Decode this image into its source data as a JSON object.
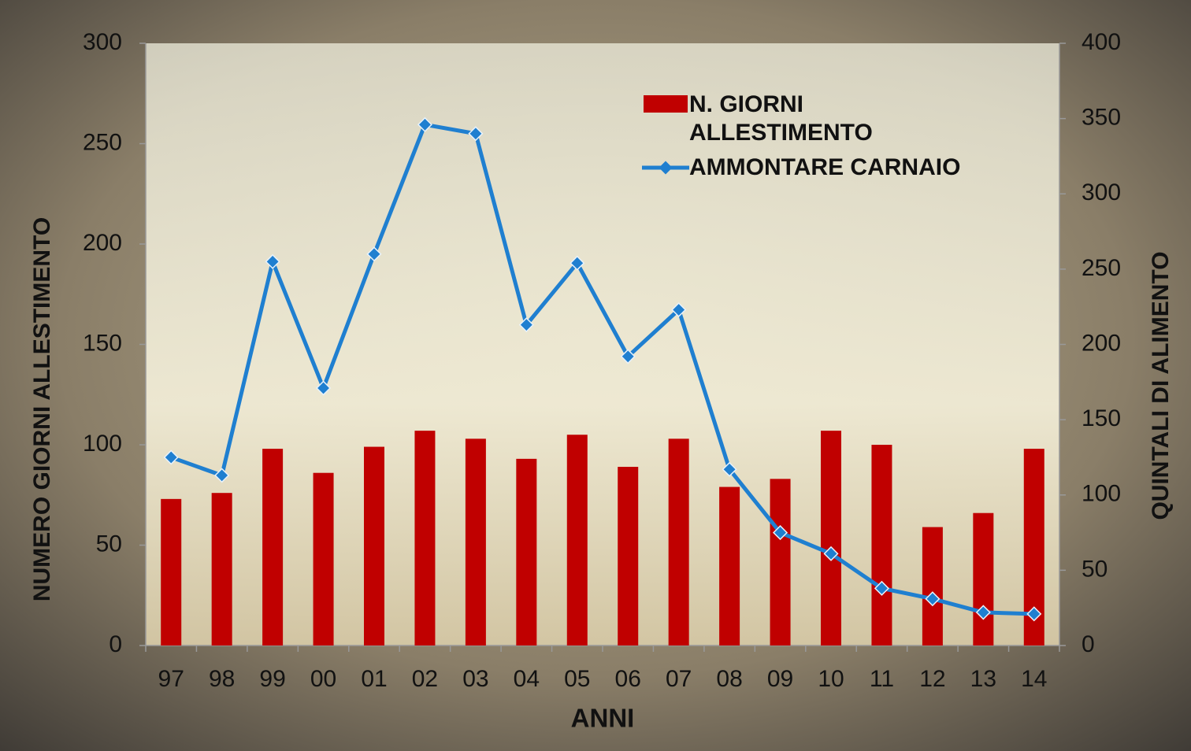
{
  "chart_data": {
    "type": "bar_line",
    "categories": [
      "97",
      "98",
      "99",
      "00",
      "01",
      "02",
      "03",
      "04",
      "05",
      "06",
      "07",
      "08",
      "09",
      "10",
      "11",
      "12",
      "13",
      "14"
    ],
    "series": [
      {
        "name": "N. GIORNI ALLESTIMENTO",
        "type": "bar",
        "color": "#c00000",
        "values": [
          73,
          76,
          98,
          86,
          99,
          107,
          103,
          93,
          105,
          89,
          103,
          79,
          83,
          107,
          100,
          59,
          66,
          98
        ]
      },
      {
        "name": "AMMONTARE CARNAIO",
        "type": "line",
        "axis": "y2",
        "color": "#1f7fd0",
        "values": [
          125,
          113,
          255,
          171,
          260,
          346,
          340,
          213,
          254,
          192,
          223,
          117,
          75,
          61,
          38,
          31,
          22,
          21
        ]
      }
    ],
    "x_label": "ANNI",
    "y_label": "NUMERO GIORNI ALLESTIMENTO",
    "y2_label": "QUINTALI DI ALIMENTO",
    "ylim": [
      0,
      300
    ],
    "yticks": [
      0,
      50,
      100,
      150,
      200,
      250,
      300
    ],
    "y2lim": [
      0,
      400
    ],
    "y2ticks": [
      0,
      50,
      100,
      150,
      200,
      250,
      300,
      350,
      400
    ],
    "legend": "upper right"
  }
}
